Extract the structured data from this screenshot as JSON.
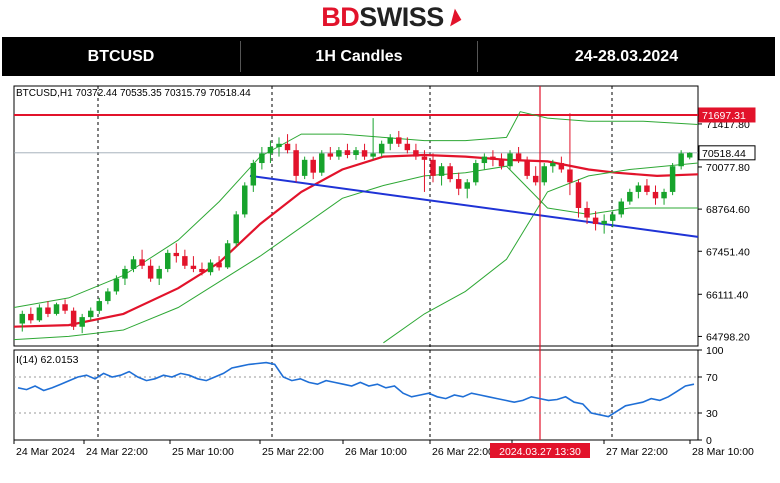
{
  "logo": {
    "part1": "BD",
    "part2": "SWISS"
  },
  "header": {
    "symbol": "BTCUSD",
    "timeframe": "1H Candles",
    "date_range": "24-28.03.2024"
  },
  "chart_data": [
    {
      "type": "candlestick",
      "info_label": "BTCUSD,H1  70372.44 70535.35 70315.79 70518.44",
      "y_ticks": [
        "71417.80",
        "70077.80",
        "68764.60",
        "67451.40",
        "66111.40",
        "64798.20"
      ],
      "ylim": [
        64500,
        72600
      ],
      "price_lines": [
        {
          "label": "71697.31",
          "value": 71697.31,
          "color": "#e2132b"
        },
        {
          "label": "70518.44",
          "value": 70518.44,
          "color": "#000000"
        }
      ],
      "cursor_label": "2024.03.27 13:30",
      "x_labels": [
        "24 Mar 2024",
        "24 Mar 22:00",
        "25 Mar 10:00",
        "25 Mar 22:00",
        "26 Mar 10:00",
        "26 Mar 22:00",
        "27 Mar 10:00",
        "27 Mar 22:00",
        "28 Mar 10:00"
      ],
      "candles": [
        [
          65200,
          65600,
          64950,
          65500
        ],
        [
          65500,
          65700,
          65200,
          65300
        ],
        [
          65300,
          65800,
          65250,
          65700
        ],
        [
          65700,
          65900,
          65400,
          65500
        ],
        [
          65500,
          65850,
          65450,
          65800
        ],
        [
          65800,
          65950,
          65500,
          65600
        ],
        [
          65600,
          65700,
          65000,
          65100
        ],
        [
          65100,
          65500,
          64900,
          65400
        ],
        [
          65400,
          65700,
          65300,
          65600
        ],
        [
          65600,
          66000,
          65500,
          65900
        ],
        [
          65900,
          66300,
          65800,
          66200
        ],
        [
          66200,
          66700,
          66100,
          66600
        ],
        [
          66600,
          67000,
          66400,
          66900
        ],
        [
          66900,
          67300,
          66800,
          67200
        ],
        [
          67200,
          67500,
          66900,
          67000
        ],
        [
          67000,
          67200,
          66500,
          66600
        ],
        [
          66600,
          67000,
          66400,
          66900
        ],
        [
          66900,
          67500,
          66800,
          67400
        ],
        [
          67400,
          67700,
          67100,
          67300
        ],
        [
          67300,
          67500,
          66900,
          67000
        ],
        [
          67000,
          67300,
          66800,
          66900
        ],
        [
          66900,
          67100,
          66700,
          66800
        ],
        [
          66800,
          67200,
          66700,
          67100
        ],
        [
          67100,
          67300,
          66850,
          66950
        ],
        [
          66950,
          67800,
          66900,
          67700
        ],
        [
          67700,
          68700,
          67600,
          68600
        ],
        [
          68600,
          69600,
          68500,
          69500
        ],
        [
          69500,
          70300,
          69300,
          70200
        ],
        [
          70200,
          70700,
          70000,
          70500
        ],
        [
          70500,
          70900,
          70200,
          70700
        ],
        [
          70700,
          71000,
          70400,
          70800
        ],
        [
          70800,
          71100,
          70500,
          70600
        ],
        [
          70600,
          70800,
          69600,
          69800
        ],
        [
          69800,
          70400,
          69700,
          70300
        ],
        [
          70300,
          70400,
          69700,
          69900
        ],
        [
          69900,
          70600,
          69800,
          70500
        ],
        [
          70500,
          70700,
          70300,
          70400
        ],
        [
          70400,
          70700,
          70300,
          70600
        ],
        [
          70600,
          70800,
          70350,
          70450
        ],
        [
          70450,
          70700,
          70300,
          70600
        ],
        [
          70600,
          70800,
          70300,
          70400
        ],
        [
          70400,
          71600,
          70300,
          70500
        ],
        [
          70500,
          70900,
          70400,
          70800
        ],
        [
          70800,
          71100,
          70600,
          71000
        ],
        [
          71000,
          71200,
          70700,
          70800
        ],
        [
          70800,
          71000,
          70500,
          70600
        ],
        [
          70600,
          70800,
          70300,
          70400
        ],
        [
          70400,
          70600,
          69300,
          70300
        ],
        [
          70300,
          70500,
          69600,
          69800
        ],
        [
          69800,
          70200,
          69500,
          70100
        ],
        [
          70100,
          70200,
          69600,
          69700
        ],
        [
          69700,
          69900,
          69200,
          69400
        ],
        [
          69400,
          69700,
          69100,
          69600
        ],
        [
          69600,
          70300,
          69500,
          70200
        ],
        [
          70200,
          70500,
          70000,
          70400
        ],
        [
          70400,
          70600,
          70100,
          70300
        ],
        [
          70300,
          70500,
          70000,
          70100
        ],
        [
          70100,
          70600,
          70000,
          70500
        ],
        [
          70500,
          70700,
          70200,
          70300
        ],
        [
          70300,
          70400,
          69700,
          69800
        ],
        [
          69800,
          70100,
          69500,
          69600
        ],
        [
          69600,
          70200,
          69500,
          70100
        ],
        [
          70100,
          70300,
          69900,
          70200
        ],
        [
          70200,
          70400,
          69900,
          70000
        ],
        [
          70000,
          71750,
          69200,
          69600
        ],
        [
          69600,
          69700,
          68500,
          68800
        ],
        [
          68800,
          69000,
          68300,
          68500
        ],
        [
          68500,
          68700,
          68100,
          68300
        ],
        [
          68300,
          68600,
          68000,
          68400
        ],
        [
          68400,
          68700,
          68200,
          68600
        ],
        [
          68600,
          69100,
          68500,
          69000
        ],
        [
          69000,
          69400,
          68900,
          69300
        ],
        [
          69300,
          69600,
          69100,
          69500
        ],
        [
          69500,
          69700,
          69200,
          69300
        ],
        [
          69300,
          69500,
          68900,
          69100
        ],
        [
          69100,
          69400,
          68900,
          69300
        ],
        [
          69300,
          70200,
          69200,
          70100
        ],
        [
          70100,
          70600,
          70000,
          70500
        ],
        [
          70372.44,
          70535.35,
          70315.79,
          70518.44
        ]
      ],
      "moving_averages": [
        {
          "name": "",
          "color": "#e2132b",
          "values": [
            [
              0,
              65100
            ],
            [
              0.08,
              65150
            ],
            [
              0.16,
              65500
            ],
            [
              0.24,
              66300
            ],
            [
              0.3,
              67100
            ],
            [
              0.36,
              68300
            ],
            [
              0.42,
              69300
            ],
            [
              0.48,
              70000
            ],
            [
              0.54,
              70400
            ],
            [
              0.6,
              70450
            ],
            [
              0.66,
              70400
            ],
            [
              0.72,
              70300
            ],
            [
              0.78,
              70250
            ],
            [
              0.84,
              70000
            ],
            [
              0.88,
              69900
            ],
            [
              0.94,
              69800
            ],
            [
              1.0,
              69850
            ]
          ]
        },
        {
          "name": "",
          "color": "#2ea835",
          "values": [
            [
              0,
              65700
            ],
            [
              0.08,
              66000
            ],
            [
              0.16,
              66700
            ],
            [
              0.24,
              67800
            ],
            [
              0.3,
              69000
            ],
            [
              0.36,
              70400
            ],
            [
              0.42,
              71100
            ],
            [
              0.48,
              71100
            ],
            [
              0.54,
              71000
            ],
            [
              0.6,
              70900
            ],
            [
              0.66,
              70900
            ],
            [
              0.72,
              71000
            ],
            [
              0.74,
              71800
            ],
            [
              0.78,
              71600
            ],
            [
              0.84,
              71500
            ],
            [
              0.92,
              71500
            ],
            [
              1.0,
              71400
            ]
          ]
        },
        {
          "name": "",
          "color": "#2ea835",
          "values": [
            [
              0,
              64700
            ],
            [
              0.08,
              64800
            ],
            [
              0.16,
              65000
            ],
            [
              0.24,
              65700
            ],
            [
              0.3,
              66500
            ],
            [
              0.36,
              67300
            ],
            [
              0.42,
              68200
            ],
            [
              0.48,
              69100
            ],
            [
              0.54,
              69500
            ],
            [
              0.6,
              69800
            ],
            [
              0.66,
              69900
            ],
            [
              0.72,
              70100
            ],
            [
              0.78,
              68800
            ],
            [
              0.84,
              68600
            ],
            [
              0.9,
              68800
            ],
            [
              1.0,
              68800
            ]
          ]
        },
        {
          "name": "",
          "color": "#2ea835",
          "values": [
            [
              0.54,
              64600
            ],
            [
              0.6,
              65500
            ],
            [
              0.66,
              66200
            ],
            [
              0.72,
              67200
            ],
            [
              0.78,
              69300
            ],
            [
              0.84,
              69800
            ],
            [
              0.9,
              70000
            ],
            [
              1.0,
              70200
            ]
          ]
        }
      ],
      "trendlines": [
        {
          "from": [
            0.345,
            69800
          ],
          "to": [
            1.0,
            67900
          ],
          "color": "#1f33d6"
        }
      ],
      "indicator": {
        "label": "I(14) 62.0153",
        "levels": [
          "100",
          "70",
          "30",
          "0"
        ],
        "dashed_levels": [
          70,
          30
        ],
        "values": [
          58,
          56,
          60,
          55,
          58,
          62,
          66,
          70,
          72,
          68,
          74,
          70,
          72,
          76,
          70,
          66,
          68,
          72,
          70,
          74,
          72,
          68,
          66,
          70,
          74,
          80,
          82,
          84,
          85,
          86,
          84,
          70,
          66,
          68,
          64,
          62,
          66,
          64,
          62,
          60,
          64,
          60,
          62,
          58,
          60,
          52,
          48,
          50,
          52,
          48,
          46,
          50,
          48,
          52,
          50,
          48,
          46,
          44,
          42,
          44,
          48,
          46,
          44,
          45,
          48,
          42,
          40,
          30,
          28,
          26,
          32,
          38,
          40,
          42,
          46,
          44,
          48,
          54,
          60,
          62
        ]
      }
    }
  ]
}
